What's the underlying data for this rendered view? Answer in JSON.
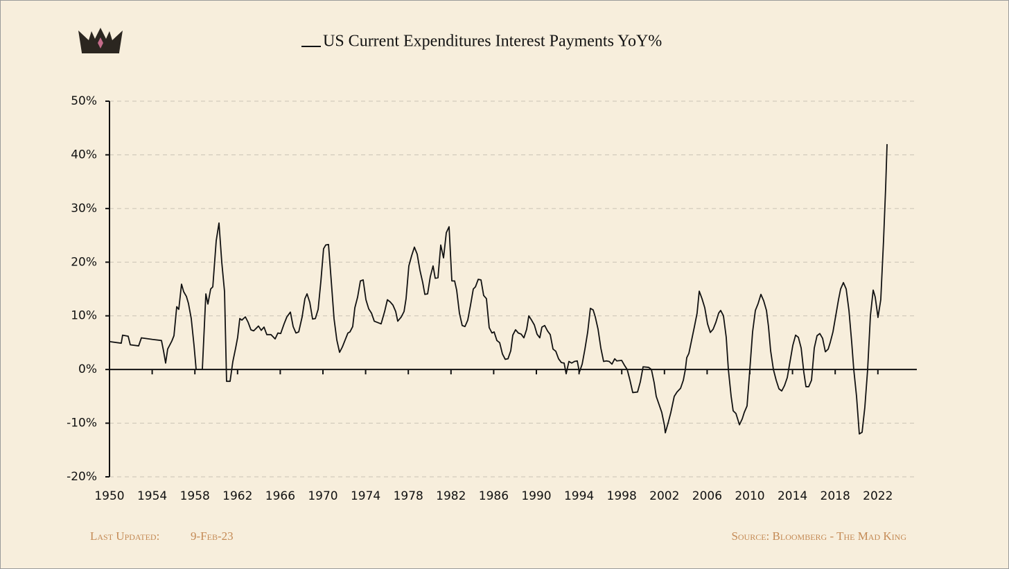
{
  "chart_data": {
    "type": "line",
    "legend": "top",
    "grid": true,
    "x": [
      1950.0,
      1951.1,
      1951.23,
      1951.75,
      1951.95,
      1952.73,
      1952.99,
      1954.03,
      1954.87,
      1955.06,
      1955.26,
      1955.45,
      1955.84,
      1956.04,
      1956.3,
      1956.49,
      1956.75,
      1956.95,
      1957.21,
      1957.4,
      1957.66,
      1957.92,
      1958.12,
      1958.7,
      1959.03,
      1959.22,
      1959.48,
      1959.68,
      1960.0,
      1960.26,
      1960.52,
      1960.78,
      1960.97,
      1961.3,
      1961.56,
      1961.82,
      1962.01,
      1962.21,
      1962.4,
      1962.73,
      1962.99,
      1963.25,
      1963.51,
      1963.96,
      1964.22,
      1964.48,
      1964.74,
      1965.13,
      1965.52,
      1965.78,
      1966.04,
      1966.36,
      1966.62,
      1966.95,
      1967.21,
      1967.47,
      1967.73,
      1968.05,
      1968.31,
      1968.51,
      1968.77,
      1969.03,
      1969.29,
      1969.55,
      1969.81,
      1970.06,
      1970.26,
      1970.52,
      1970.78,
      1971.04,
      1971.3,
      1971.56,
      1971.82,
      1972.08,
      1972.34,
      1972.53,
      1972.79,
      1972.99,
      1973.25,
      1973.51,
      1973.77,
      1974.03,
      1974.29,
      1974.55,
      1974.81,
      1975.45,
      1975.78,
      1976.04,
      1976.3,
      1976.56,
      1976.82,
      1977.01,
      1977.34,
      1977.6,
      1977.79,
      1978.05,
      1978.31,
      1978.57,
      1978.83,
      1979.09,
      1979.35,
      1979.55,
      1979.81,
      1980.06,
      1980.32,
      1980.52,
      1980.78,
      1981.04,
      1981.3,
      1981.56,
      1981.82,
      1982.08,
      1982.34,
      1982.53,
      1982.79,
      1983.05,
      1983.31,
      1983.57,
      1983.83,
      1984.09,
      1984.29,
      1984.55,
      1984.81,
      1985.06,
      1985.32,
      1985.58,
      1985.84,
      1986.04,
      1986.3,
      1986.56,
      1986.82,
      1987.08,
      1987.34,
      1987.6,
      1987.79,
      1988.05,
      1988.31,
      1988.57,
      1988.83,
      1989.09,
      1989.29,
      1989.55,
      1989.81,
      1990.06,
      1990.32,
      1990.52,
      1990.78,
      1991.04,
      1991.3,
      1991.56,
      1991.82,
      1992.08,
      1992.34,
      1992.6,
      1992.79,
      1993.05,
      1993.31,
      1993.57,
      1993.83,
      1994.03,
      1994.29,
      1994.55,
      1994.81,
      1995.06,
      1995.32,
      1995.52,
      1995.78,
      1996.04,
      1996.3,
      1996.56,
      1996.82,
      1997.08,
      1997.34,
      1997.53,
      1997.99,
      1998.25,
      1998.51,
      1998.77,
      1999.03,
      1999.48,
      1999.74,
      2000.0,
      2000.52,
      2000.78,
      2001.04,
      2001.23,
      2001.49,
      2001.75,
      2002.01,
      2002.08,
      2002.34,
      2002.6,
      2002.92,
      2003.18,
      2003.51,
      2003.77,
      2003.96,
      2004.09,
      2004.29,
      2004.55,
      2004.81,
      2005.06,
      2005.26,
      2005.52,
      2005.78,
      2006.04,
      2006.3,
      2006.56,
      2006.82,
      2007.08,
      2007.27,
      2007.53,
      2007.79,
      2007.99,
      2008.25,
      2008.44,
      2008.7,
      2009.03,
      2009.29,
      2009.48,
      2009.74,
      2010.0,
      2010.26,
      2010.52,
      2010.78,
      2011.04,
      2011.3,
      2011.56,
      2011.75,
      2011.95,
      2012.21,
      2012.47,
      2012.73,
      2012.99,
      2013.25,
      2013.51,
      2013.77,
      2014.03,
      2014.29,
      2014.55,
      2014.81,
      2015.06,
      2015.26,
      2015.52,
      2015.78,
      2016.04,
      2016.3,
      2016.56,
      2016.82,
      2017.08,
      2017.34,
      2017.53,
      2017.79,
      2018.05,
      2018.31,
      2018.51,
      2018.77,
      2019.03,
      2019.29,
      2019.55,
      2019.74,
      2020.0,
      2020.26,
      2020.52,
      2020.78,
      2021.04,
      2021.3,
      2021.56,
      2021.75,
      2022.01,
      2022.27,
      2022.53,
      2022.73,
      2022.86
    ],
    "series": [
      {
        "name": "US Current Expenditures Interest Payments YoY%",
        "color": "#111111",
        "values": [
          5.2,
          4.9,
          6.4,
          6.2,
          4.6,
          4.4,
          5.9,
          5.6,
          5.4,
          3.5,
          1.2,
          3.8,
          5.3,
          6.3,
          11.7,
          11.2,
          15.9,
          14.5,
          13.6,
          12.3,
          9.5,
          4.5,
          0,
          0,
          14.1,
          12.2,
          15,
          15.4,
          24,
          27.3,
          20,
          14.5,
          -2.2,
          -2.2,
          1.5,
          4,
          6,
          9.5,
          9.2,
          9.8,
          8.8,
          7.4,
          7.2,
          8.1,
          7.3,
          7.9,
          6.5,
          6.5,
          5.7,
          6.8,
          6.7,
          8.5,
          9.8,
          10.7,
          8,
          6.8,
          7,
          9.8,
          13.2,
          14.1,
          12.5,
          9.4,
          9.5,
          11.2,
          16.5,
          22.5,
          23.2,
          23.3,
          16.5,
          9.5,
          5.5,
          3.2,
          4.2,
          5.5,
          6.8,
          7,
          8,
          11.5,
          13.5,
          16.5,
          16.7,
          13,
          11.3,
          10.5,
          9,
          8.5,
          10.8,
          13,
          12.6,
          12,
          10.8,
          9,
          9.8,
          10.8,
          13.2,
          19.3,
          21.2,
          22.8,
          21.5,
          18.5,
          16.2,
          14,
          14.1,
          17.3,
          19.3,
          17,
          17.1,
          23.2,
          20.8,
          25.5,
          26.6,
          16.5,
          16.5,
          14.8,
          10.5,
          8.2,
          8,
          9.2,
          12,
          15,
          15.4,
          16.8,
          16.7,
          13.8,
          13.2,
          7.8,
          6.8,
          7,
          5.4,
          5,
          2.9,
          1.9,
          2,
          3.5,
          6.4,
          7.4,
          6.8,
          6.6,
          5.9,
          7.5,
          10,
          9.2,
          8.3,
          6.6,
          5.9,
          7.9,
          8.2,
          7.2,
          6.5,
          3.8,
          3.4,
          2,
          1.3,
          1.2,
          -0.8,
          1.5,
          1.2,
          1.5,
          1.6,
          -0.5,
          1,
          3.8,
          7,
          11.4,
          11.1,
          9.8,
          7.5,
          4,
          1.5,
          1.6,
          1.5,
          1,
          2,
          1.6,
          1.7,
          0.8,
          0,
          -2,
          -4.3,
          -4.2,
          -2.3,
          0.5,
          0.4,
          0,
          -2.5,
          -5,
          -6.5,
          -8,
          -10.5,
          -11.8,
          -10,
          -8,
          -5,
          -4.2,
          -3.5,
          -2,
          0,
          2.2,
          3,
          5.5,
          8,
          10.5,
          14.6,
          13.2,
          11.5,
          8.5,
          6.9,
          7.5,
          8.8,
          10.5,
          11,
          10,
          6,
          0,
          -5,
          -7.7,
          -8.2,
          -10.3,
          -9.2,
          -8,
          -6.8,
          0,
          7,
          11,
          12.3,
          14,
          12.8,
          11,
          8,
          3.5,
          0,
          -2,
          -3.6,
          -4,
          -3,
          -1.5,
          1.5,
          4.5,
          6.4,
          6,
          4,
          -0.5,
          -3.2,
          -3.2,
          -2,
          4,
          6.3,
          6.7,
          5.8,
          3.3,
          3.8,
          5,
          7,
          10,
          13,
          15,
          16.2,
          15,
          11,
          5,
          0,
          -5,
          -12,
          -11.7,
          -7,
          0,
          10,
          14.8,
          13.5,
          9.7,
          13,
          24,
          34,
          42
        ]
      }
    ],
    "xlim": [
      1950,
      2025.65
    ],
    "xticks": [
      1950,
      1954,
      1958,
      1962,
      1966,
      1970,
      1974,
      1978,
      1982,
      1986,
      1990,
      1994,
      1998,
      2002,
      2006,
      2010,
      2014,
      2018,
      2022
    ],
    "ylim": [
      -20,
      50
    ],
    "yticks": [
      {
        "value": -20,
        "label": "-20%"
      },
      {
        "value": -10,
        "label": "-10%"
      },
      {
        "value": 0,
        "label": "0%"
      },
      {
        "value": 10,
        "label": "10%"
      },
      {
        "value": 20,
        "label": "20%"
      },
      {
        "value": 30,
        "label": "30%"
      },
      {
        "value": 40,
        "label": "40%"
      },
      {
        "value": 50,
        "label": "50%"
      }
    ],
    "footer": {
      "updated_label": "Last Updated:",
      "updated_date": "9-Feb-23",
      "source": "Source: Bloomberg - The Mad King"
    }
  }
}
